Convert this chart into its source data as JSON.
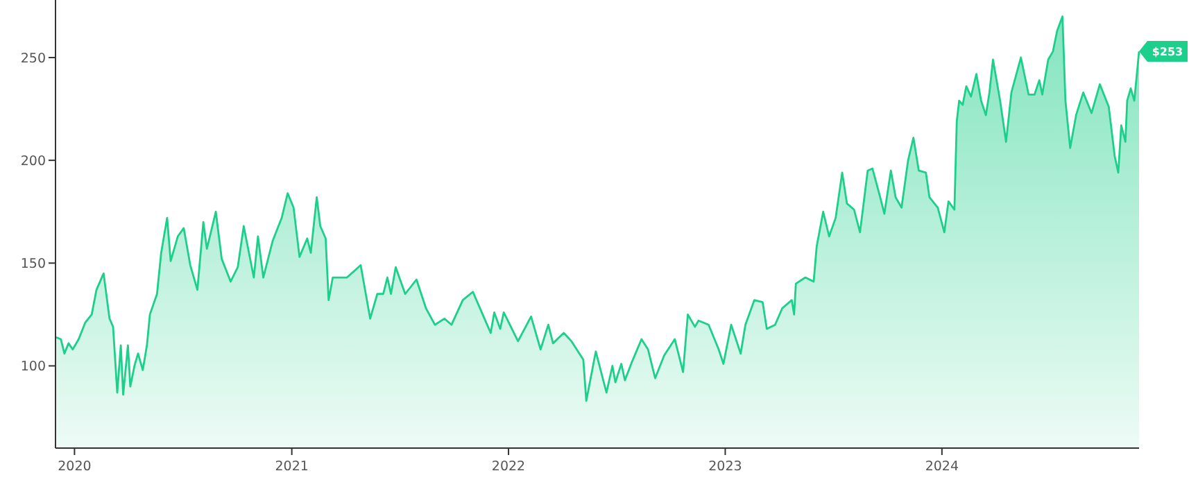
{
  "chart_data": {
    "type": "area",
    "x": [
      "2019-11-30",
      "2019-12-09",
      "2019-12-15",
      "2019-12-22",
      "2019-12-29",
      "2020-01-08",
      "2020-01-19",
      "2020-01-30",
      "2020-02-07",
      "2020-02-19",
      "2020-02-29",
      "2020-03-06",
      "2020-03-13",
      "2020-03-19",
      "2020-03-23",
      "2020-03-31",
      "2020-04-04",
      "2020-04-11",
      "2020-04-17",
      "2020-04-25",
      "2020-05-02",
      "2020-05-07",
      "2020-05-19",
      "2020-05-26",
      "2020-06-05",
      "2020-06-11",
      "2020-06-23",
      "2020-07-03",
      "2020-07-14",
      "2020-07-26",
      "2020-08-05",
      "2020-08-11",
      "2020-08-26",
      "2020-09-05",
      "2020-09-20",
      "2020-10-02",
      "2020-10-12",
      "2020-10-29",
      "2020-11-05",
      "2020-11-14",
      "2020-11-30",
      "2020-12-15",
      "2020-12-25",
      "2021-01-04",
      "2021-01-14",
      "2021-01-27",
      "2021-02-02",
      "2021-02-12",
      "2021-02-18",
      "2021-02-27",
      "2021-03-04",
      "2021-03-11",
      "2021-04-04",
      "2021-04-27",
      "2021-05-13",
      "2021-05-25",
      "2021-06-04",
      "2021-06-11",
      "2021-06-17",
      "2021-06-25",
      "2021-07-11",
      "2021-07-30",
      "2021-08-15",
      "2021-08-30",
      "2021-09-15",
      "2021-09-27",
      "2021-10-16",
      "2021-11-02",
      "2021-11-20",
      "2021-12-02",
      "2021-12-08",
      "2021-12-18",
      "2021-12-24",
      "2022-01-17",
      "2022-02-08",
      "2022-02-24",
      "2022-03-09",
      "2022-03-17",
      "2022-04-04",
      "2022-04-17",
      "2022-05-07",
      "2022-05-12",
      "2022-05-28",
      "2022-06-15",
      "2022-06-25",
      "2022-06-30",
      "2022-07-10",
      "2022-07-16",
      "2022-07-28",
      "2022-08-13",
      "2022-08-24",
      "2022-09-05",
      "2022-09-20",
      "2022-10-08",
      "2022-10-22",
      "2022-10-30",
      "2022-11-11",
      "2022-11-17",
      "2022-12-04",
      "2022-12-21",
      "2022-12-29",
      "2023-01-11",
      "2023-01-27",
      "2023-02-04",
      "2023-02-19",
      "2023-03-05",
      "2023-03-12",
      "2023-03-26",
      "2023-04-07",
      "2023-04-23",
      "2023-04-27",
      "2023-04-30",
      "2023-05-16",
      "2023-05-30",
      "2023-06-04",
      "2023-06-15",
      "2023-06-25",
      "2023-07-06",
      "2023-07-17",
      "2023-07-25",
      "2023-08-06",
      "2023-08-16",
      "2023-08-29",
      "2023-09-06",
      "2023-09-19",
      "2023-09-26",
      "2023-10-07",
      "2023-10-15",
      "2023-10-25",
      "2023-11-05",
      "2023-11-14",
      "2023-11-23",
      "2023-12-05",
      "2023-12-11",
      "2023-12-25",
      "2024-01-05",
      "2024-01-12",
      "2024-01-22",
      "2024-01-26",
      "2024-01-30",
      "2024-02-05",
      "2024-02-11",
      "2024-02-19",
      "2024-02-28",
      "2024-03-07",
      "2024-03-15",
      "2024-03-21",
      "2024-03-27",
      "2024-04-08",
      "2024-04-18",
      "2024-04-27",
      "2024-05-13",
      "2024-05-26",
      "2024-06-05",
      "2024-06-13",
      "2024-06-18",
      "2024-06-28",
      "2024-07-06",
      "2024-07-13",
      "2024-07-22",
      "2024-07-27",
      "2024-08-04",
      "2024-08-14",
      "2024-08-26",
      "2024-09-09",
      "2024-09-23",
      "2024-10-08",
      "2024-10-18",
      "2024-10-24",
      "2024-10-29",
      "2024-11-05",
      "2024-11-08",
      "2024-11-14",
      "2024-11-20",
      "2024-11-28"
    ],
    "series": [
      {
        "color": "#1ccf8a",
        "values": [
          114,
          113,
          106,
          111,
          108,
          113,
          121,
          125,
          137,
          145,
          123,
          119,
          87,
          110,
          86,
          110,
          90,
          100,
          106,
          98,
          110,
          125,
          135,
          155,
          172,
          151,
          163,
          167,
          149,
          137,
          170,
          157,
          175,
          152,
          141,
          148,
          168,
          143,
          163,
          143,
          161,
          172,
          184,
          177,
          153,
          162,
          155,
          182,
          168,
          162,
          132,
          143,
          143,
          149,
          123,
          135,
          135,
          143,
          135,
          148,
          135,
          142,
          128,
          120,
          123,
          120,
          132,
          136,
          124,
          116,
          126,
          118,
          126,
          112,
          124,
          108,
          120,
          111,
          116,
          112,
          103,
          83,
          107,
          87,
          100,
          92,
          101,
          93,
          102,
          113,
          108,
          94,
          105,
          113,
          97,
          125,
          119,
          122,
          120,
          108,
          101,
          120,
          106,
          120,
          132,
          131,
          118,
          120,
          128,
          132,
          125,
          140,
          143,
          141,
          158,
          175,
          163,
          172,
          194,
          179,
          176,
          165,
          195,
          196,
          182,
          174,
          195,
          182,
          177,
          200,
          211,
          195,
          194,
          182,
          177,
          165,
          180,
          176,
          219,
          229,
          227,
          236,
          231,
          242,
          229,
          222,
          233,
          249,
          229,
          209,
          233,
          250,
          232,
          232,
          239,
          232,
          249,
          253,
          263,
          270,
          229,
          206,
          222,
          233,
          223,
          237,
          226,
          202,
          194,
          217,
          209,
          229,
          235,
          229,
          253
        ]
      }
    ],
    "xlim": [
      "2019-11-30",
      "2024-11-28"
    ],
    "xticks": [
      {
        "value": "2020-01-01",
        "label": "2020"
      },
      {
        "value": "2021-01-01",
        "label": "2021"
      },
      {
        "value": "2022-01-01",
        "label": "2022"
      },
      {
        "value": "2023-01-01",
        "label": "2023"
      },
      {
        "value": "2024-01-01",
        "label": "2024"
      }
    ],
    "ylim": [
      60,
      278
    ],
    "yticks": [
      100,
      150,
      200,
      250
    ],
    "grid": false,
    "annotations": [
      {
        "text": "$253",
        "x": "2024-11-28",
        "y": 253
      }
    ]
  }
}
